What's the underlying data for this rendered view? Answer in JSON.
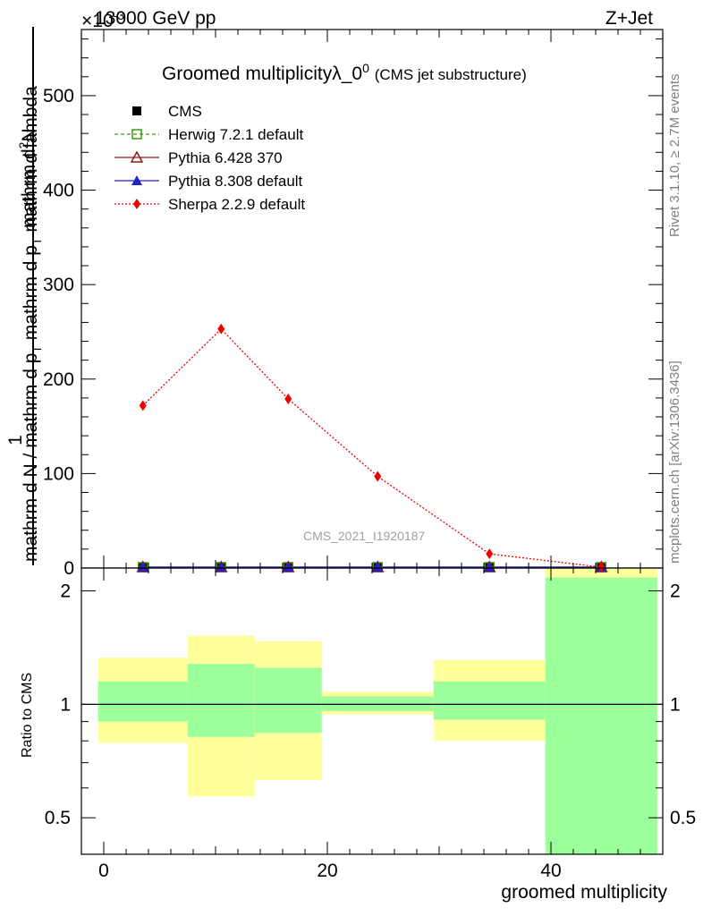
{
  "header": {
    "energy": "13000 GeV pp",
    "process": "Z+Jet",
    "exponent_label": "×10",
    "exponent_power": "-3"
  },
  "side_texts": {
    "rivet": "Rivet 3.1.10, ≥ 2.7M events",
    "mcplots": "mcplots.cern.ch [arXiv:1306.3436]"
  },
  "chart_data": [
    {
      "type": "line",
      "title": "Groomed multiplicityλ_0",
      "title_superscript": "0",
      "subtitle": "(CMS jet substructure)",
      "watermark": "CMS_2021_I1920187",
      "ylabel_top": "1",
      "ylabel_numerator": "mathrm d",
      "ylabel_numerator_super": "2",
      "ylabel_numerator_end": "N",
      "ylabel_denominator": "mathrm d N / mathrm d p",
      "ylabel_denominator_sub": "T",
      "ylabel_denominator_mid": " mathrm d p",
      "ylabel_denominator_sub2": "T",
      "ylabel_denominator_end": " mathrm d lambda",
      "xlabel": "groomed multiplicity",
      "xlim": [
        -2,
        50
      ],
      "ylim": [
        0,
        570
      ],
      "y_scale_note": "×10^-3",
      "xticks": [
        0,
        20,
        40
      ],
      "yticks": [
        0,
        100,
        200,
        300,
        400,
        500
      ],
      "x_bin_edges": [
        -0.5,
        7.5,
        13.5,
        19.5,
        29.5,
        39.5,
        49.5
      ],
      "series": [
        {
          "name": "CMS",
          "marker": "square",
          "color": "#000000",
          "line": "none",
          "x": [
            3.5,
            10.5,
            16.5,
            24.5,
            34.5,
            44.5
          ],
          "y": [
            0.3,
            0.3,
            0.3,
            0.3,
            0.3,
            0.3
          ]
        },
        {
          "name": "Herwig 7.2.1 default",
          "marker": "open-square",
          "color": "#3a9a12",
          "line": "dashed",
          "x": [
            3.5,
            10.5,
            16.5,
            24.5,
            34.5,
            44.5
          ],
          "y": [
            0.3,
            0.3,
            0.3,
            0.3,
            0.3,
            0.3
          ]
        },
        {
          "name": "Pythia 6.428 370",
          "marker": "open-triangle",
          "color": "#8b1a1a",
          "line": "solid",
          "x": [
            3.5,
            10.5,
            16.5,
            24.5,
            34.5,
            44.5
          ],
          "y": [
            0.3,
            0.3,
            0.3,
            0.3,
            0.3,
            0.3
          ]
        },
        {
          "name": "Pythia 8.308 default",
          "marker": "triangle",
          "color": "#1f23c8",
          "line": "solid",
          "x": [
            3.5,
            10.5,
            16.5,
            24.5,
            34.5,
            44.5
          ],
          "y": [
            0.3,
            0.3,
            0.3,
            0.3,
            0.3,
            0.3
          ]
        },
        {
          "name": "Sherpa 2.2.9 default",
          "marker": "diamond",
          "color": "#ee0000",
          "line": "dotted",
          "x": [
            3.5,
            10.5,
            16.5,
            24.5,
            34.5,
            44.5
          ],
          "y": [
            172,
            253,
            179,
            97,
            15,
            0.5
          ]
        }
      ],
      "legend_placement": "top-left"
    },
    {
      "type": "area",
      "ylabel": "Ratio to CMS",
      "xlabel": "groomed multiplicity",
      "xlim": [
        -2,
        50
      ],
      "ylim": [
        0.4,
        2.3
      ],
      "xticks": [
        0,
        20,
        40
      ],
      "yticks": [
        0.5,
        1,
        2
      ],
      "y_scale": "log",
      "reference_line": 1,
      "bins": [
        {
          "lo": -0.5,
          "hi": 7.5,
          "inner": [
            0.9,
            1.15
          ],
          "outer": [
            0.79,
            1.33
          ]
        },
        {
          "lo": 7.5,
          "hi": 13.5,
          "inner": [
            0.82,
            1.28
          ],
          "outer": [
            0.57,
            1.52
          ]
        },
        {
          "lo": 13.5,
          "hi": 19.5,
          "inner": [
            0.84,
            1.25
          ],
          "outer": [
            0.63,
            1.47
          ]
        },
        {
          "lo": 19.5,
          "hi": 29.5,
          "inner": [
            0.96,
            1.05
          ],
          "outer": [
            0.94,
            1.08
          ]
        },
        {
          "lo": 29.5,
          "hi": 39.5,
          "inner": [
            0.91,
            1.15
          ],
          "outer": [
            0.8,
            1.31
          ]
        },
        {
          "lo": 39.5,
          "hi": 49.5,
          "inner": [
            0.4,
            2.17
          ],
          "outer": [
            0.4,
            2.3
          ]
        }
      ],
      "inner_band_color": "#9bff9b",
      "outer_band_color": "#ffff9b"
    }
  ]
}
